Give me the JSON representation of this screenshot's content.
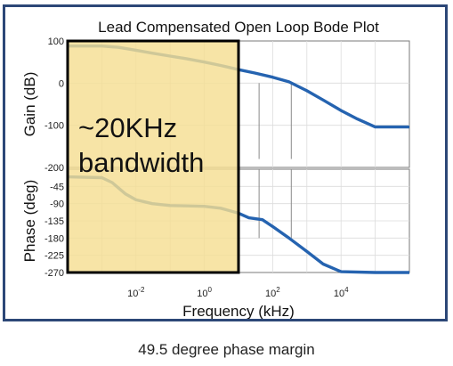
{
  "caption": "49.5 degree phase margin",
  "colors": {
    "frame": "#2c4777",
    "series": "#2563b0",
    "highlight": "#f5de93",
    "highlight_border": "#000000"
  },
  "chart_data": {
    "type": "line",
    "title": "Lead Compensated Open Loop Bode Plot",
    "xlabel": "Frequency (kHz)",
    "x_scale": "log",
    "xlim": [
      0.0001,
      1000000
    ],
    "x_tick_labels": [
      "10^-2",
      "10^0",
      "10^2",
      "10^4"
    ],
    "grid": true,
    "annotation": {
      "text_lines": [
        "~20KHz",
        "bandwidth"
      ],
      "x_range": [
        0.0001,
        10
      ]
    },
    "panels": [
      {
        "name": "gain",
        "ylabel": "Gain (dB)",
        "ylim": [
          -200,
          100
        ],
        "yticks": [
          100,
          0,
          -100,
          -200
        ],
        "series": [
          {
            "x": [
              0.0001,
              0.001,
              0.003,
              0.01,
              0.03,
              0.1,
              0.3,
              1,
              3,
              10,
              30,
              100,
              300,
              1000,
              3000,
              10000,
              30000,
              100000,
              1000000
            ],
            "y": [
              88,
              88,
              85,
              78,
              71,
              64,
              58,
              50,
              42,
              32,
              24,
              14,
              3,
              -18,
              -40,
              -65,
              -85,
              -104,
              -104
            ]
          }
        ]
      },
      {
        "name": "phase",
        "ylabel": "Phase (deg)",
        "ylim": [
          -270,
          0
        ],
        "yticks": [
          -45,
          -90,
          -135,
          -180,
          -225,
          -270
        ],
        "series": [
          {
            "x": [
              0.0001,
              0.001,
              0.002,
              0.005,
              0.01,
              0.03,
              0.1,
              0.3,
              1,
              3,
              10,
              20,
              50,
              100,
              300,
              1000,
              3000,
              10000,
              100000,
              1000000
            ],
            "y": [
              -20,
              -22,
              -35,
              -65,
              -80,
              -90,
              -95,
              -96,
              -97,
              -102,
              -115,
              -127,
              -132,
              -150,
              -180,
              -215,
              -248,
              -268,
              -270,
              -270
            ]
          }
        ]
      }
    ],
    "markers": [
      {
        "x": 40,
        "y_from": 0,
        "y_to": -180
      },
      {
        "x": 350,
        "y_from": 0,
        "y_to": -180
      }
    ]
  }
}
